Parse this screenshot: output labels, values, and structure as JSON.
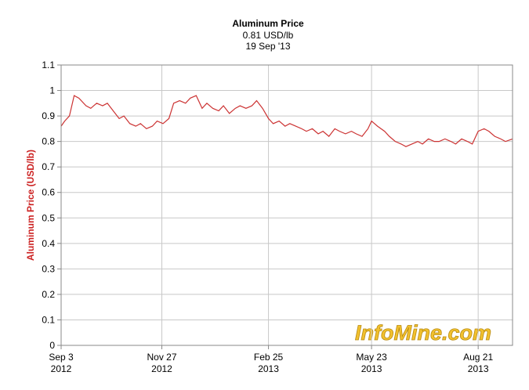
{
  "chart_data": {
    "type": "line",
    "title": "Aluminum Price",
    "subtitle": "0.81 USD/lb",
    "date_label": "19 Sep '13",
    "y_label": "Aluminum Price (USD/lb)",
    "watermark": "InfoMine.com",
    "x": [
      "2012-09-03",
      "2012-09-06",
      "2012-09-10",
      "2012-09-14",
      "2012-09-18",
      "2012-09-24",
      "2012-09-28",
      "2012-10-03",
      "2012-10-08",
      "2012-10-12",
      "2012-10-17",
      "2012-10-22",
      "2012-10-26",
      "2012-10-31",
      "2012-11-05",
      "2012-11-09",
      "2012-11-14",
      "2012-11-19",
      "2012-11-23",
      "2012-11-28",
      "2012-12-03",
      "2012-12-07",
      "2012-12-12",
      "2012-12-17",
      "2012-12-21",
      "2012-12-26",
      "2012-12-31",
      "2013-01-04",
      "2013-01-09",
      "2013-01-14",
      "2013-01-18",
      "2013-01-23",
      "2013-01-28",
      "2013-02-01",
      "2013-02-06",
      "2013-02-11",
      "2013-02-15",
      "2013-02-20",
      "2013-02-25",
      "2013-03-01",
      "2013-03-06",
      "2013-03-11",
      "2013-03-15",
      "2013-03-20",
      "2013-03-25",
      "2013-03-29",
      "2013-04-03",
      "2013-04-08",
      "2013-04-12",
      "2013-04-17",
      "2013-04-22",
      "2013-04-26",
      "2013-05-01",
      "2013-05-06",
      "2013-05-10",
      "2013-05-15",
      "2013-05-20",
      "2013-05-23",
      "2013-05-28",
      "2013-06-03",
      "2013-06-07",
      "2013-06-12",
      "2013-06-17",
      "2013-06-21",
      "2013-06-26",
      "2013-07-01",
      "2013-07-05",
      "2013-07-10",
      "2013-07-15",
      "2013-07-19",
      "2013-07-24",
      "2013-07-29",
      "2013-08-02",
      "2013-08-07",
      "2013-08-12",
      "2013-08-16",
      "2013-08-21",
      "2013-08-26",
      "2013-08-30",
      "2013-09-04",
      "2013-09-09",
      "2013-09-13",
      "2013-09-19"
    ],
    "series": [
      {
        "name": "Aluminum Price",
        "color": "#cc3333",
        "values": [
          0.86,
          0.88,
          0.9,
          0.98,
          0.97,
          0.94,
          0.93,
          0.95,
          0.94,
          0.95,
          0.92,
          0.89,
          0.9,
          0.87,
          0.86,
          0.87,
          0.85,
          0.86,
          0.88,
          0.87,
          0.89,
          0.95,
          0.96,
          0.95,
          0.97,
          0.98,
          0.93,
          0.95,
          0.93,
          0.92,
          0.94,
          0.91,
          0.93,
          0.94,
          0.93,
          0.94,
          0.96,
          0.93,
          0.89,
          0.87,
          0.88,
          0.86,
          0.87,
          0.86,
          0.85,
          0.84,
          0.85,
          0.83,
          0.84,
          0.82,
          0.85,
          0.84,
          0.83,
          0.84,
          0.83,
          0.82,
          0.85,
          0.88,
          0.86,
          0.84,
          0.82,
          0.8,
          0.79,
          0.78,
          0.79,
          0.8,
          0.79,
          0.81,
          0.8,
          0.8,
          0.81,
          0.8,
          0.79,
          0.81,
          0.8,
          0.79,
          0.84,
          0.85,
          0.84,
          0.82,
          0.81,
          0.8,
          0.81
        ]
      }
    ],
    "xlim": [
      "2012-09-03",
      "2013-09-19"
    ],
    "xticks": [
      {
        "value": "2012-09-03",
        "label": [
          "Sep 3",
          "2012"
        ]
      },
      {
        "value": "2012-11-27",
        "label": [
          "Nov 27",
          "2012"
        ]
      },
      {
        "value": "2013-02-25",
        "label": [
          "Feb 25",
          "2013"
        ]
      },
      {
        "value": "2013-05-23",
        "label": [
          "May 23",
          "2013"
        ]
      },
      {
        "value": "2013-08-21",
        "label": [
          "Aug 21",
          "2013"
        ]
      }
    ],
    "ylim": [
      0,
      1.1
    ],
    "yticks": [
      0,
      0.1,
      0.2,
      0.3,
      0.4,
      0.5,
      0.6,
      0.7,
      0.8,
      0.9,
      1,
      1.1
    ],
    "grid": true
  }
}
